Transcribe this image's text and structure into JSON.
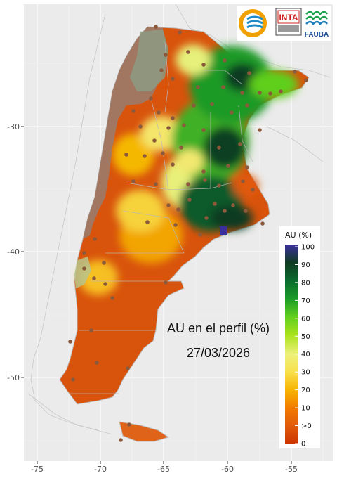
{
  "map": {
    "title_line1": "AU en el perfil (%)",
    "title_line2": "27/03/2026",
    "x_ticks": [
      "-75",
      "-70",
      "-65",
      "-60",
      "-55"
    ],
    "y_ticks": [
      "-30",
      "-40",
      "-50"
    ],
    "colors": {
      "panel_bg": "#ebebeb",
      "grid": "#ffffff",
      "outline": "#bdbdbd",
      "station": "#8b5a3c",
      "arid_mask": "#9c7b6b"
    }
  },
  "legend": {
    "title": "AU (%)",
    "labels": [
      "100",
      "90",
      "80",
      "70",
      "60",
      "50",
      "40",
      "30",
      "20",
      "10",
      ">0",
      "0"
    ],
    "colors": [
      "#3b2f9e",
      "#0f3b22",
      "#0b6b2e",
      "#1a9a28",
      "#5fcf1e",
      "#a8e21a",
      "#eef07a",
      "#f8e04a",
      "#f7b300",
      "#f27a00",
      "#e05a0a",
      "#cc3300"
    ]
  },
  "logos": {
    "inta": "INTA",
    "fauba": "FAUBA"
  },
  "chart_data": {
    "type": "heatmap",
    "variable": "AU en el perfil (%)",
    "date": "27/03/2026",
    "xlim": [
      -76,
      -52
    ],
    "ylim": [
      -56,
      -21
    ],
    "x_ticks": [
      -75,
      -70,
      -65,
      -60,
      -55
    ],
    "y_ticks": [
      -30,
      -40,
      -50
    ],
    "color_scale": {
      "breaks": [
        0,
        ">0",
        10,
        20,
        30,
        40,
        50,
        60,
        70,
        80,
        90,
        100
      ]
    },
    "grid": true
  }
}
